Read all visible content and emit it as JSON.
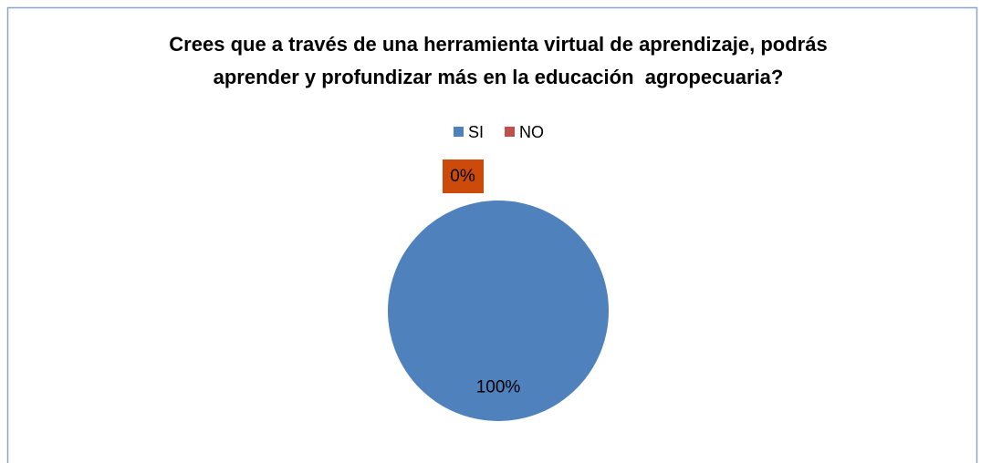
{
  "chart_data": {
    "type": "pie",
    "title": [
      "Crees que a través de una herramienta virtual de aprendizaje, podrás",
      "aprender y profundizar más en la educación  agropecuaria?"
    ],
    "categories": [
      "SI",
      "NO"
    ],
    "values": [
      100,
      0
    ],
    "value_labels": [
      "100%",
      "0%"
    ],
    "colors": [
      "#4f81bd",
      "#c0504d"
    ],
    "legend": "top"
  }
}
